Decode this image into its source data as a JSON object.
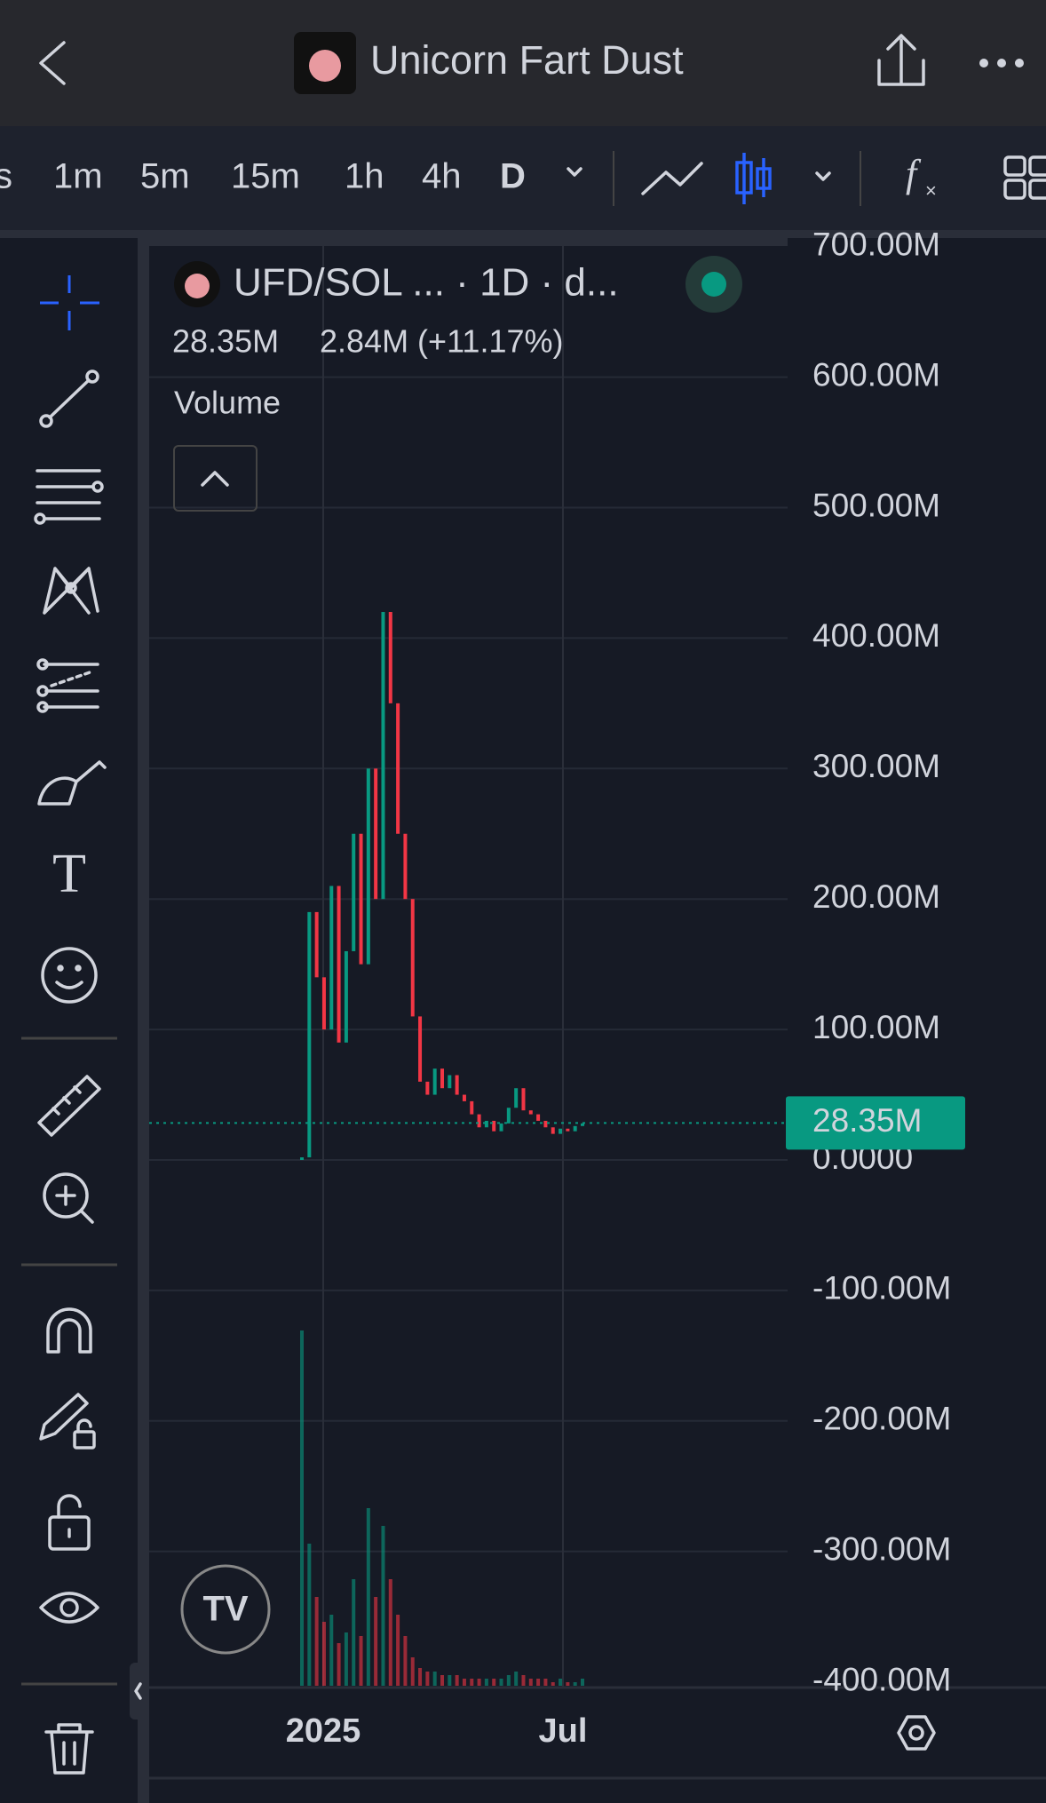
{
  "header": {
    "title": "Unicorn Fart Dust"
  },
  "timeframes": [
    "s",
    "1m",
    "5m",
    "15m",
    "1h",
    "4h",
    "D"
  ],
  "legend": {
    "symbol": "UFD/SOL ... · 1D · d...",
    "price": "28.35M",
    "change": "2.84M (+11.17%)",
    "indicator": "Volume"
  },
  "chart_data": {
    "type": "candlestick",
    "yticks": [
      {
        "value": 700,
        "label": "700.00M"
      },
      {
        "value": 600,
        "label": "600.00M"
      },
      {
        "value": 500,
        "label": "500.00M"
      },
      {
        "value": 400,
        "label": "400.00M"
      },
      {
        "value": 300,
        "label": "300.00M"
      },
      {
        "value": 200,
        "label": "200.00M"
      },
      {
        "value": 100,
        "label": "100.00M"
      },
      {
        "value": 0,
        "label": "0.0000"
      },
      {
        "value": -100,
        "label": "-100.00M"
      },
      {
        "value": -200,
        "label": "-200.00M"
      },
      {
        "value": -300,
        "label": "-300.00M"
      },
      {
        "value": -400,
        "label": "-400.00M"
      }
    ],
    "xticks": [
      "2025",
      "Jul"
    ],
    "values": [
      2,
      190,
      140,
      100,
      210,
      90,
      160,
      250,
      150,
      300,
      200,
      420,
      350,
      250,
      200,
      110,
      60,
      50,
      70,
      55,
      65,
      50,
      45,
      35,
      25,
      30,
      22,
      28,
      40,
      55,
      38,
      35,
      30,
      25,
      20,
      24,
      22,
      26,
      28
    ],
    "volume": [
      100,
      40,
      25,
      18,
      20,
      12,
      15,
      30,
      14,
      50,
      25,
      45,
      30,
      20,
      14,
      8,
      5,
      4,
      4,
      3,
      3,
      3,
      2,
      2,
      2,
      2,
      2,
      2,
      3,
      4,
      3,
      2,
      2,
      2,
      1,
      2,
      1,
      1,
      2
    ],
    "last_price": {
      "value": 28.35,
      "label": "28.35M"
    },
    "up_color": "#089981",
    "down_color": "#f23645"
  }
}
